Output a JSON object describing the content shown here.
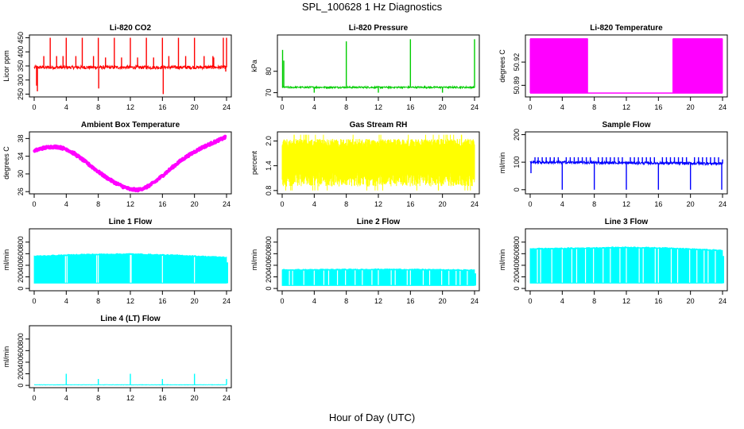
{
  "page_title": "SPL_100628  1 Hz Diagnostics",
  "x_caption": "Hour of Day (UTC)",
  "chart_data": [
    {
      "type": "line",
      "title": "Li-820 CO2",
      "ylabel": "Licor ppm",
      "color": "#ff0000",
      "style": "noisy_line",
      "ylim": [
        240,
        460
      ],
      "yticks": [
        250,
        300,
        350,
        400,
        450
      ],
      "xlim": [
        0,
        24
      ],
      "xticks": [
        0,
        4,
        8,
        12,
        16,
        20,
        24
      ],
      "baseline": [
        [
          0,
          345
        ],
        [
          24,
          345
        ]
      ],
      "noise": 6,
      "spikes": [
        [
          0.3,
          280
        ],
        [
          0.4,
          260
        ],
        [
          1.2,
          385
        ],
        [
          2.0,
          450
        ],
        [
          2.8,
          385
        ],
        [
          3.6,
          385
        ],
        [
          4.0,
          450
        ],
        [
          5.2,
          385
        ],
        [
          6.0,
          450
        ],
        [
          7.4,
          385
        ],
        [
          8.0,
          450
        ],
        [
          8.05,
          270
        ],
        [
          8.9,
          380
        ],
        [
          10.0,
          450
        ],
        [
          10.9,
          380
        ],
        [
          12.0,
          450
        ],
        [
          12.9,
          380
        ],
        [
          14.0,
          450
        ],
        [
          14.9,
          380
        ],
        [
          16.0,
          450
        ],
        [
          16.1,
          250
        ],
        [
          16.8,
          385
        ],
        [
          18.0,
          450
        ],
        [
          18.9,
          385
        ],
        [
          20.0,
          450
        ],
        [
          21.2,
          385
        ],
        [
          22.3,
          385
        ],
        [
          22.4,
          380
        ],
        [
          23.6,
          450
        ],
        [
          24.0,
          450
        ],
        [
          23.9,
          330
        ]
      ]
    },
    {
      "type": "line",
      "title": "Li-820 Pressure",
      "ylabel": "kPa",
      "color": "#00cc00",
      "style": "noisy_line",
      "ylim": [
        68,
        97
      ],
      "yticks": [
        70,
        80
      ],
      "xlim": [
        0,
        24
      ],
      "xticks": [
        0,
        4,
        8,
        12,
        16,
        20,
        24
      ],
      "baseline": [
        [
          0,
          72.5
        ],
        [
          24,
          72.5
        ]
      ],
      "noise": 0.4,
      "spikes": [
        [
          0.05,
          90
        ],
        [
          0.2,
          85
        ],
        [
          4.0,
          70
        ],
        [
          8.0,
          94
        ],
        [
          12.0,
          70
        ],
        [
          16.0,
          95
        ],
        [
          20.0,
          70
        ],
        [
          24.0,
          95
        ]
      ]
    },
    {
      "type": "line",
      "title": "Li-820 Temperature",
      "ylabel": "degrees C",
      "color": "#ff00ff",
      "style": "toggle",
      "ylim": [
        50.875,
        50.955
      ],
      "yticks": [
        50.89,
        50.92
      ],
      "ytick_labels": [
        "50.89",
        "50.92"
      ],
      "ytick_labels_raw": [
        "50.89",
        "50.92"
      ],
      "xlim": [
        0,
        24
      ],
      "xticks": [
        0,
        4,
        8,
        12,
        16,
        20,
        24
      ],
      "levels": [
        50.88,
        50.95
      ],
      "bands": [
        [
          0,
          7.2
        ],
        [
          17.8,
          24.0
        ]
      ]
    },
    {
      "type": "line",
      "title": "Ambient Box Temperature",
      "ylabel": "degrees C",
      "color": "#ff00ff",
      "style": "thick_curve",
      "ylim": [
        25.5,
        39.5
      ],
      "yticks": [
        26,
        30,
        34,
        38
      ],
      "xlim": [
        0,
        24
      ],
      "xticks": [
        0,
        4,
        8,
        12,
        16,
        20,
        24
      ],
      "x": [
        0,
        1,
        2,
        3,
        4,
        5,
        6,
        7,
        8,
        9,
        10,
        11,
        12,
        13,
        14,
        15,
        16,
        17,
        18,
        19,
        20,
        21,
        22,
        23,
        24
      ],
      "y": [
        35.2,
        35.8,
        36.1,
        36.1,
        35.6,
        34.6,
        33.3,
        31.9,
        30.5,
        29.2,
        28.1,
        27.2,
        26.5,
        26.4,
        27.0,
        28.1,
        29.6,
        31.1,
        32.6,
        33.9,
        35.0,
        36.0,
        36.8,
        37.6,
        38.4
      ]
    },
    {
      "type": "line",
      "title": "Gas Stream RH",
      "ylabel": "percent",
      "color": "#ffff00",
      "style": "band_noise",
      "ylim": [
        0.72,
        2.22
      ],
      "yticks": [
        0.8,
        1.4,
        2.0
      ],
      "ytick_labels": [
        "0.8",
        "1.4",
        "2.0"
      ],
      "xlim": [
        0,
        24
      ],
      "xticks": [
        0,
        4,
        8,
        12,
        16,
        20,
        24
      ],
      "band_low": 0.9,
      "band_high": 2.05,
      "extreme_low": 0.8,
      "extreme_high": 2.15
    },
    {
      "type": "line",
      "title": "Sample Flow",
      "ylabel": "ml/min",
      "color": "#0000ff",
      "style": "noisy_line",
      "ylim": [
        -15,
        210
      ],
      "yticks": [
        0,
        100,
        200
      ],
      "xlim": [
        0,
        24
      ],
      "xticks": [
        0,
        4,
        8,
        12,
        16,
        20,
        24
      ],
      "baseline": [
        [
          0,
          100
        ],
        [
          24,
          95
        ]
      ],
      "noise": 5,
      "spikes": [
        [
          0.1,
          60
        ],
        [
          0.6,
          118
        ],
        [
          1.0,
          118
        ],
        [
          1.5,
          118
        ],
        [
          2.0,
          118
        ],
        [
          2.5,
          118
        ],
        [
          3.0,
          118
        ],
        [
          3.5,
          118
        ],
        [
          4.0,
          0
        ],
        [
          4.5,
          118
        ],
        [
          5.0,
          118
        ],
        [
          5.5,
          118
        ],
        [
          6.0,
          118
        ],
        [
          6.5,
          118
        ],
        [
          7.0,
          118
        ],
        [
          7.5,
          118
        ],
        [
          8.0,
          0
        ],
        [
          8.5,
          118
        ],
        [
          9.0,
          118
        ],
        [
          9.5,
          118
        ],
        [
          10.0,
          118
        ],
        [
          10.5,
          118
        ],
        [
          11.0,
          118
        ],
        [
          11.5,
          118
        ],
        [
          12.0,
          0
        ],
        [
          12.5,
          118
        ],
        [
          13.0,
          118
        ],
        [
          13.5,
          118
        ],
        [
          14.0,
          118
        ],
        [
          14.5,
          118
        ],
        [
          15.0,
          118
        ],
        [
          15.5,
          118
        ],
        [
          16.0,
          0
        ],
        [
          16.5,
          118
        ],
        [
          17.0,
          118
        ],
        [
          17.5,
          118
        ],
        [
          18.0,
          118
        ],
        [
          18.5,
          118
        ],
        [
          19.0,
          118
        ],
        [
          19.5,
          118
        ],
        [
          20.0,
          0
        ],
        [
          20.5,
          118
        ],
        [
          21.0,
          118
        ],
        [
          21.5,
          118
        ],
        [
          22.0,
          118
        ],
        [
          22.5,
          118
        ],
        [
          23.0,
          118
        ],
        [
          23.5,
          118
        ],
        [
          23.9,
          0
        ],
        [
          24.0,
          110
        ]
      ]
    },
    {
      "type": "area",
      "title": "Line 1 Flow",
      "ylabel": "ml/min",
      "color": "#00ffff",
      "style": "flow_block",
      "ylim": [
        -40,
        1030
      ],
      "yticks": [
        0,
        200,
        400,
        600,
        800
      ],
      "xlim": [
        0,
        24
      ],
      "xticks": [
        0,
        4,
        8,
        12,
        16,
        20,
        24
      ],
      "top": [
        [
          0,
          560
        ],
        [
          6,
          590
        ],
        [
          12,
          600
        ],
        [
          18,
          575
        ],
        [
          24,
          540
        ]
      ],
      "bottom": 90,
      "end_x": 24.1,
      "end_value": 450,
      "gaps": [
        3.9,
        4.1,
        7.8,
        8.0,
        12.0,
        12.1,
        16.0,
        20.0
      ]
    },
    {
      "type": "area",
      "title": "Line 2 Flow",
      "ylabel": "ml/min",
      "color": "#00ffff",
      "style": "flow_block",
      "ylim": [
        -40,
        1030
      ],
      "yticks": [
        0,
        200,
        400,
        600,
        800
      ],
      "xlim": [
        0,
        24
      ],
      "xticks": [
        0,
        4,
        8,
        12,
        16,
        20,
        24
      ],
      "top": [
        [
          0,
          325
        ],
        [
          6,
          330
        ],
        [
          12,
          335
        ],
        [
          18,
          330
        ],
        [
          24,
          320
        ]
      ],
      "bottom": 50,
      "end_x": 24.1,
      "end_value": 260,
      "gaps": [
        0.9,
        1.3,
        2.7,
        4.0,
        5.2,
        5.8,
        6.9,
        7.9,
        9.1,
        10.0,
        11.2,
        12.0,
        13.6,
        14.1,
        15.6,
        16.0,
        17.6,
        18.4,
        19.9,
        20.8,
        21.7,
        22.2,
        23.1
      ]
    },
    {
      "type": "area",
      "title": "Line 3 Flow",
      "ylabel": "ml/min",
      "color": "#00ffff",
      "style": "flow_block",
      "ylim": [
        -40,
        1030
      ],
      "yticks": [
        0,
        200,
        400,
        600,
        800
      ],
      "xlim": [
        0,
        24
      ],
      "xticks": [
        0,
        4,
        8,
        12,
        16,
        20,
        24
      ],
      "top": [
        [
          0,
          690
        ],
        [
          6,
          700
        ],
        [
          12,
          715
        ],
        [
          18,
          700
        ],
        [
          24,
          660
        ]
      ],
      "bottom": 90,
      "end_x": 24.1,
      "end_value": 560,
      "gaps": [
        0.9,
        1.3,
        2.7,
        4.0,
        5.2,
        5.8,
        6.9,
        7.9,
        9.1,
        10.0,
        11.2,
        12.0,
        13.6,
        14.1,
        15.6,
        16.0,
        17.6,
        18.4,
        19.9,
        20.8,
        21.7,
        22.2,
        23.1
      ]
    },
    {
      "type": "line",
      "title": "Line 4 (LT) Flow",
      "ylabel": "ml/min",
      "color": "#00ffff",
      "style": "noisy_line",
      "ylim": [
        -40,
        1030
      ],
      "yticks": [
        0,
        200,
        400,
        600,
        800
      ],
      "xlim": [
        0,
        24
      ],
      "xticks": [
        0,
        4,
        8,
        12,
        16,
        20,
        24
      ],
      "baseline": [
        [
          0,
          10
        ],
        [
          24,
          10
        ]
      ],
      "noise": 3,
      "spikes": [
        [
          4.0,
          200
        ],
        [
          8.0,
          110
        ],
        [
          12.0,
          200
        ],
        [
          16.0,
          110
        ],
        [
          20.0,
          200
        ],
        [
          24.0,
          110
        ]
      ]
    }
  ]
}
